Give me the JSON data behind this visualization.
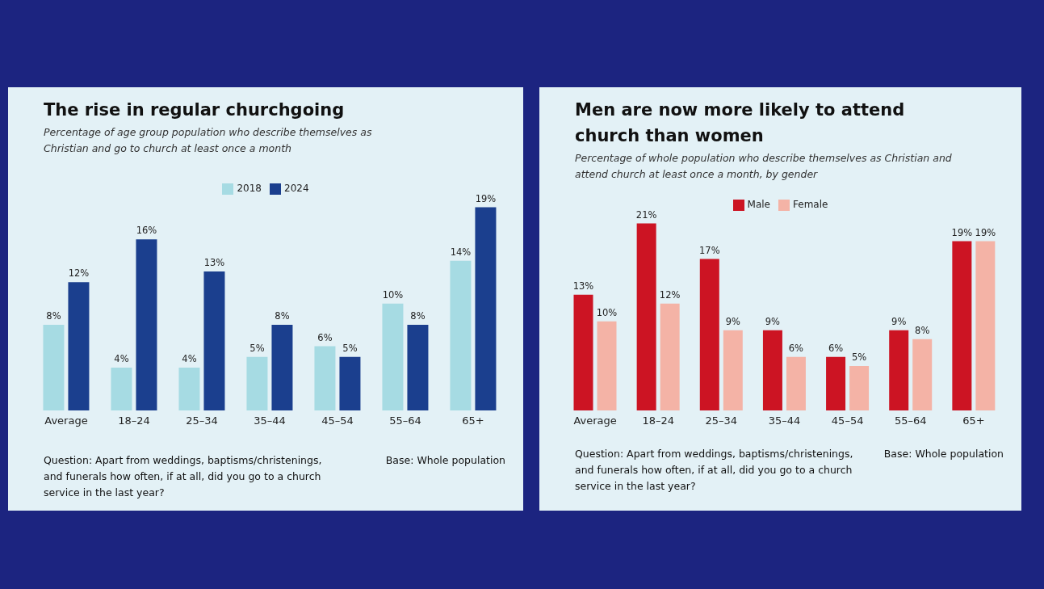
{
  "chart_data": [
    {
      "type": "bar",
      "title": "The rise in regular churchgoing",
      "subtitle": "Percentage of age group population who describe themselves as Christian and go to church at least once a month",
      "categories": [
        "Average",
        "18–24",
        "25–34",
        "35–44",
        "45–54",
        "55–64",
        "65+"
      ],
      "series": [
        {
          "name": "2018",
          "color": "#a6dbe3",
          "values": [
            8,
            4,
            4,
            5,
            6,
            10,
            14
          ],
          "value_labels": [
            "8%",
            "4%",
            "4%",
            "5%",
            "6%",
            "10%",
            "14%"
          ]
        },
        {
          "name": "2024",
          "color": "#1b3f8e",
          "values": [
            12,
            16,
            13,
            8,
            5,
            8,
            19
          ],
          "value_labels": [
            "12%",
            "16%",
            "13%",
            "8%",
            "5%",
            "8%",
            "19%"
          ]
        }
      ],
      "legend": "top",
      "annotations": [
        "Question: Apart from weddings, baptisms/christenings, and funerals how often, if at all, did you go to a church service in the last year?",
        "Base: Whole population"
      ]
    },
    {
      "type": "bar",
      "title": "Men are now more likely to attend church than women",
      "subtitle": "Percentage of whole population who describe themselves as Christian and attend church at least once a month, by gender",
      "categories": [
        "Average",
        "18–24",
        "25–34",
        "35–44",
        "45–54",
        "55–64",
        "65+"
      ],
      "series": [
        {
          "name": "Male",
          "color": "#cc1423",
          "values": [
            13,
            21,
            17,
            9,
            6,
            9,
            19
          ],
          "value_labels": [
            "13%",
            "21%",
            "17%",
            "9%",
            "6%",
            "9%",
            "19%"
          ]
        },
        {
          "name": "Female",
          "color": "#f4b3a6",
          "values": [
            10,
            12,
            9,
            6,
            5,
            8,
            19
          ],
          "value_labels": [
            "10%",
            "12%",
            "9%",
            "6%",
            "5%",
            "8%",
            "19%"
          ]
        }
      ],
      "legend": "top",
      "annotations": [
        "Question: Apart from weddings, baptisms/christenings, and funerals how often, if at all, did you go to a church service in the last year?",
        "Base: Whole population"
      ]
    }
  ]
}
